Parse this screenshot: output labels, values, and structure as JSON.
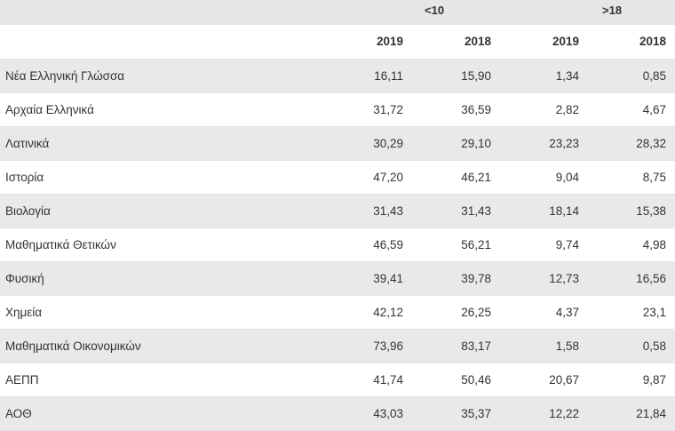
{
  "groups": {
    "lt10": "<10",
    "gt18": ">18"
  },
  "years": [
    "2019",
    "2018",
    "2019",
    "2018"
  ],
  "rows": [
    {
      "subject": "Νέα Ελληνική Γλώσσα",
      "v": [
        "16,11",
        "15,90",
        "1,34",
        "0,85"
      ]
    },
    {
      "subject": "Αρχαία Ελληνικά",
      "v": [
        "31,72",
        "36,59",
        "2,82",
        "4,67"
      ]
    },
    {
      "subject": "Λατινικά",
      "v": [
        "30,29",
        "29,10",
        "23,23",
        "28,32"
      ]
    },
    {
      "subject": "Ιστορία",
      "v": [
        "47,20",
        "46,21",
        "9,04",
        "8,75"
      ]
    },
    {
      "subject": "Βιολογία",
      "v": [
        "31,43",
        "31,43",
        "18,14",
        "15,38"
      ]
    },
    {
      "subject": "Μαθηματικά Θετικών",
      "v": [
        "46,59",
        "56,21",
        "9,74",
        "4,98"
      ]
    },
    {
      "subject": "Φυσική",
      "v": [
        "39,41",
        "39,78",
        "12,73",
        "16,56"
      ]
    },
    {
      "subject": "Χημεία",
      "v": [
        "42,12",
        "26,25",
        "4,37",
        "23,1"
      ]
    },
    {
      "subject": "Μαθηματικά Οικονομικών",
      "v": [
        "73,96",
        "83,17",
        "1,58",
        "0,58"
      ]
    },
    {
      "subject": "ΑΕΠΠ",
      "v": [
        "41,74",
        "50,46",
        "20,67",
        "9,87"
      ]
    },
    {
      "subject": "ΑΟΘ",
      "v": [
        "43,03",
        "35,37",
        "12,22",
        "21,84"
      ]
    }
  ]
}
